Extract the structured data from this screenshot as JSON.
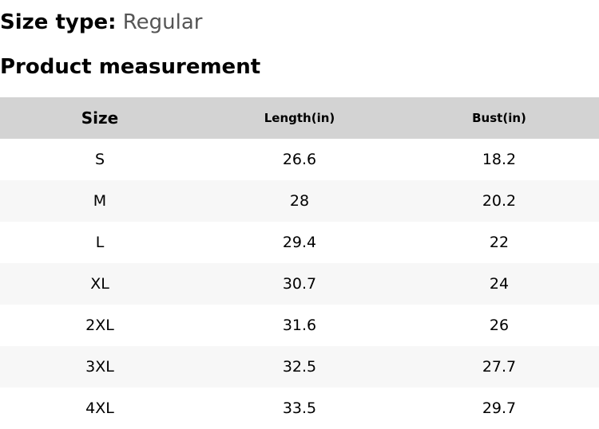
{
  "size_type": {
    "label": "Size type:",
    "value": "Regular"
  },
  "section_title": "Product measurement",
  "table": {
    "headers": [
      "Size",
      "Length(in)",
      "Bust(in)"
    ],
    "rows": [
      [
        "S",
        "26.6",
        "18.2"
      ],
      [
        "M",
        "28",
        "20.2"
      ],
      [
        "L",
        "29.4",
        "22"
      ],
      [
        "XL",
        "30.7",
        "24"
      ],
      [
        "2XL",
        "31.6",
        "26"
      ],
      [
        "3XL",
        "32.5",
        "27.7"
      ],
      [
        "4XL",
        "33.5",
        "29.7"
      ]
    ]
  },
  "colors": {
    "header_background": "#d3d3d3",
    "alt_row_background": "#f7f7f7",
    "value_text": "#555555"
  }
}
